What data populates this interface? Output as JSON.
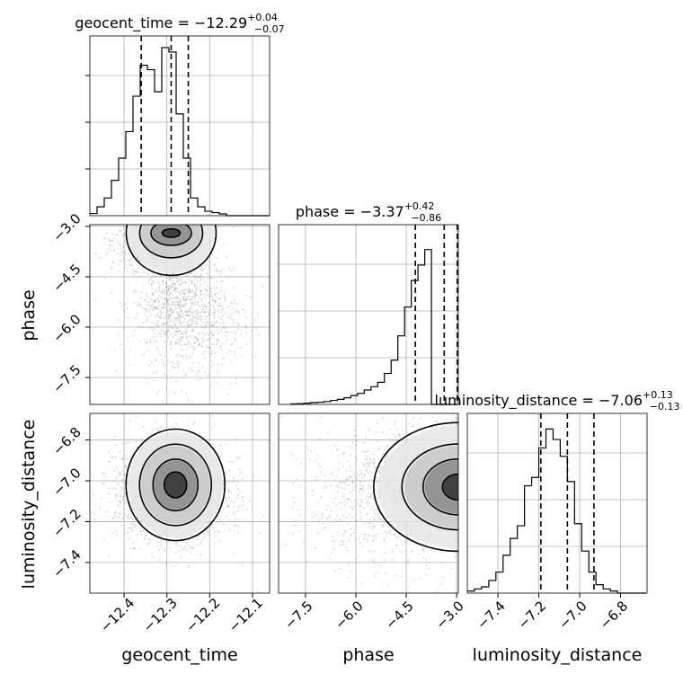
{
  "chart_data": {
    "type": "corner",
    "parameters": [
      "geocent_time",
      "phase",
      "luminosity_distance"
    ],
    "labels": {
      "x": [
        "geocent_time",
        "phase",
        "luminosity_distance"
      ],
      "y": [
        "",
        "phase",
        "luminosity_distance"
      ]
    },
    "titles": [
      {
        "text": "geocent_time = −12.29",
        "sup": "+0.04",
        "sub": "−0.07"
      },
      {
        "text": "phase = −3.37",
        "sup": "+0.42",
        "sub": "−0.86"
      },
      {
        "text": "luminosity_distance = −7.06",
        "sup": "+0.13",
        "sub": "−0.13"
      }
    ],
    "ranges": [
      [
        -12.48,
        -12.06
      ],
      [
        -8.3,
        -2.95
      ],
      [
        -7.55,
        -6.67
      ]
    ],
    "ticks": {
      "x": [
        [
          -12.4,
          -12.3,
          -12.2,
          -12.1
        ],
        [
          -7.5,
          -6.0,
          -4.5,
          -3.0
        ],
        [
          -7.4,
          -7.2,
          -7.0,
          -6.8
        ]
      ],
      "y": [
        [],
        [
          -3.0,
          -4.5,
          -6.0,
          -7.5
        ],
        [
          -6.8,
          -7.0,
          -7.2,
          -7.4
        ]
      ]
    },
    "tick_labels": {
      "x": [
        [
          "−12.4",
          "−12.3",
          "−12.2",
          "−12.1"
        ],
        [
          "−7.5",
          "−6.0",
          "−4.5",
          "−3.0"
        ],
        [
          "−7.4",
          "−7.2",
          "−7.0",
          "−6.8"
        ]
      ],
      "y": [
        [],
        [
          "−3.0",
          "−4.5",
          "−6.0",
          "−7.5"
        ],
        [
          "−6.8",
          "−7.0",
          "−7.2",
          "−7.4"
        ]
      ]
    },
    "quantiles": [
      [
        -12.36,
        -12.29,
        -12.25
      ],
      [
        -4.23,
        -3.37,
        -2.95
      ],
      [
        -7.19,
        -7.06,
        -6.93
      ]
    ],
    "histograms": [
      {
        "edges_start": -12.48,
        "bin_width": 0.0168,
        "counts": [
          0.5,
          2,
          4,
          8,
          13,
          19,
          27,
          34,
          33,
          28,
          38,
          37,
          23,
          13,
          4,
          2,
          1,
          0.7,
          0.4,
          0,
          0,
          0,
          0,
          0,
          0
        ],
        "max": 39
      },
      {
        "edges_start": -7.95,
        "bin_width": 0.2,
        "counts": [
          0.2,
          0.3,
          0.5,
          0.8,
          1,
          1.3,
          1.8,
          2.3,
          3,
          4,
          5,
          6.5,
          8,
          10,
          14,
          20,
          31,
          44,
          56,
          63,
          70,
          0,
          0,
          0,
          0,
          0,
          0
        ],
        "max": 78
      },
      {
        "edges_start": -7.55,
        "bin_width": 0.035,
        "counts": [
          1,
          2,
          3,
          6,
          10,
          18,
          26,
          32,
          51,
          55,
          69,
          78,
          73,
          65,
          53,
          33,
          20,
          10,
          4,
          2,
          1,
          0,
          0,
          0,
          0
        ],
        "max": 82
      }
    ],
    "scatter_blobs": {
      "1_0": [
        {
          "mx": -12.32,
          "my": -3.4,
          "sx": 0.055,
          "sy": 0.45,
          "n": 900
        },
        {
          "mx": -12.28,
          "my": -5.3,
          "sx": 0.05,
          "sy": 0.8,
          "n": 700
        },
        {
          "mx": -12.22,
          "my": -5.8,
          "sx": 0.06,
          "sy": 1.0,
          "n": 400
        }
      ],
      "2_0": [
        {
          "mx": -12.29,
          "my": -7.05,
          "sx": 0.065,
          "sy": 0.12,
          "n": 2200
        }
      ],
      "2_1": [
        {
          "mx": -3.5,
          "my": -7.03,
          "sx": 1.2,
          "sy": 0.13,
          "n": 1600
        },
        {
          "mx": -5.5,
          "my": -7.1,
          "sx": 1.3,
          "sy": 0.18,
          "n": 500
        }
      ]
    },
    "grid": true
  }
}
